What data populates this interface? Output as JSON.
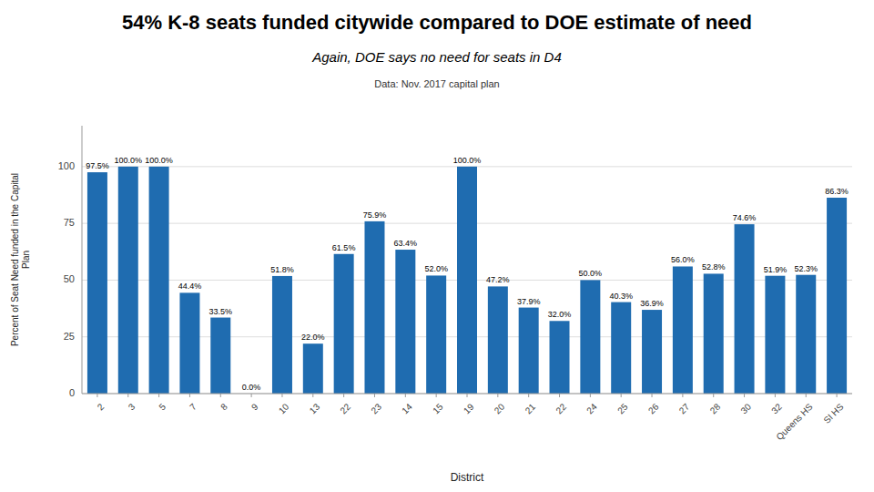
{
  "chart_data": {
    "type": "bar",
    "title": "54% K-8 seats funded citywide compared to DOE estimate of need",
    "subtitle": "Again, DOE says no need for seats in D4",
    "annotations": [
      "Data: Nov. 2017 capital plan"
    ],
    "xlabel": "District",
    "ylabel": "Percent of Seat Need funded in the Capital\nPlan",
    "categories": [
      "2",
      "3",
      "5",
      "7",
      "8",
      "9",
      "10",
      "13",
      "22",
      "23",
      "14",
      "15",
      "19",
      "20",
      "21",
      "22",
      "24",
      "25",
      "26",
      "27",
      "28",
      "30",
      "32",
      "Queens HS",
      "SI HS"
    ],
    "values": [
      97.5,
      100.0,
      100.0,
      44.4,
      33.5,
      0.0,
      51.8,
      22.0,
      61.5,
      75.9,
      63.4,
      52.0,
      100.0,
      47.2,
      37.9,
      32.0,
      50.0,
      40.3,
      36.9,
      56.0,
      52.8,
      74.6,
      51.9,
      52.3,
      86.3
    ],
    "value_labels": [
      "97.5%",
      "100.0%",
      "100.0%",
      "44.4%",
      "33.5%",
      "0.0%",
      "51.8%",
      "22.0%",
      "61.5%",
      "75.9%",
      "63.4%",
      "52.0%",
      "100.0%",
      "47.2%",
      "37.9%",
      "32.0%",
      "50.0%",
      "40.3%",
      "36.9%",
      "56.0%",
      "52.8%",
      "74.6%",
      "51.9%",
      "52.3%",
      "86.3%"
    ],
    "data_labels": true,
    "color": "#1F6CB0",
    "ylim": [
      0,
      118
    ],
    "yticks": [
      0,
      25,
      50,
      75,
      100
    ],
    "grid": true
  }
}
